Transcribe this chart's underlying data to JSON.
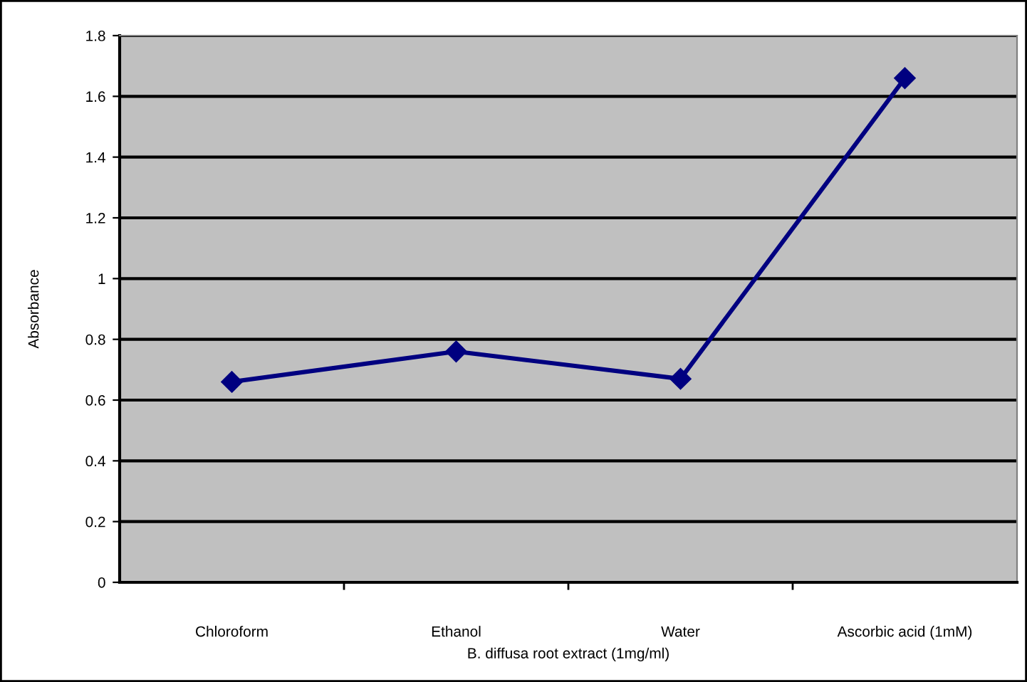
{
  "chart_data": {
    "type": "line",
    "xlabel": "B. diffusa root extract (1mg/ml)",
    "ylabel": "Absorbance",
    "categories": [
      "Chloroform",
      "Ethanol",
      "Water",
      "Ascorbic acid (1mM)"
    ],
    "series": [
      {
        "color": "#000080",
        "values": [
          0.66,
          0.76,
          0.67,
          1.66
        ]
      }
    ],
    "ylim": [
      0,
      1.8
    ],
    "yticks": [
      0,
      0.2,
      0.4,
      0.6,
      0.8,
      1,
      1.2,
      1.4,
      1.6,
      1.8
    ],
    "grid": "y",
    "marker": "diamond",
    "line_style": "solid"
  }
}
